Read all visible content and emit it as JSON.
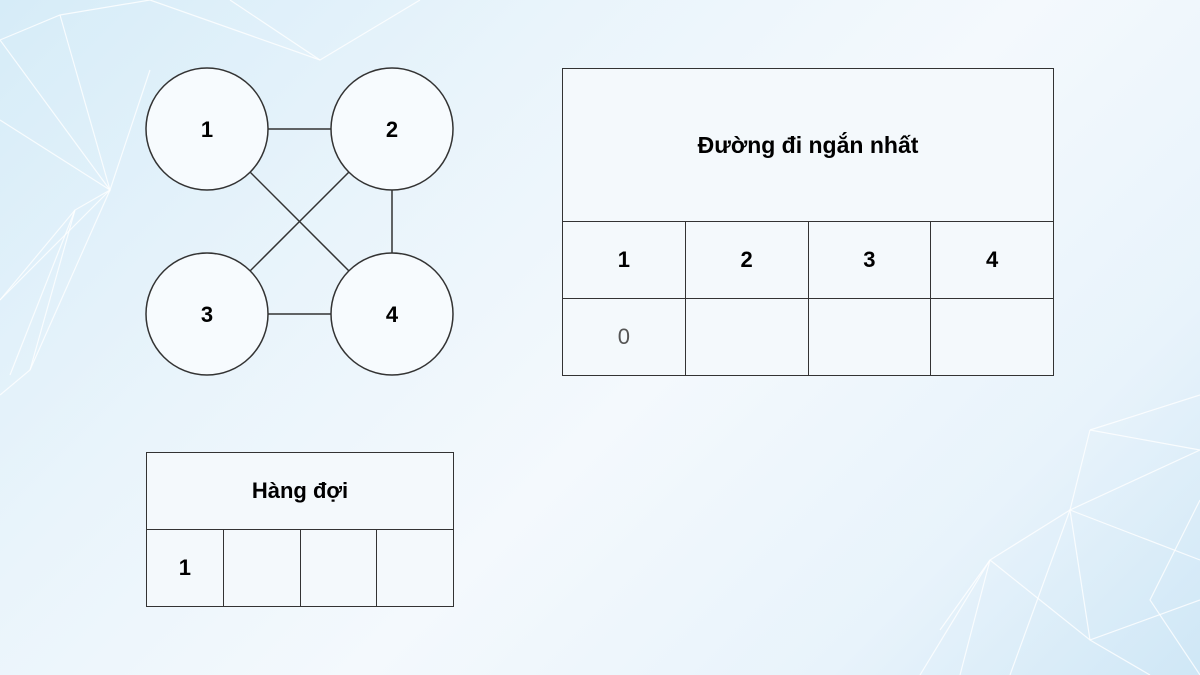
{
  "graph": {
    "nodes": [
      {
        "id": "1",
        "label": "1"
      },
      {
        "id": "2",
        "label": "2"
      },
      {
        "id": "3",
        "label": "3"
      },
      {
        "id": "4",
        "label": "4"
      }
    ],
    "edges": [
      [
        "1",
        "2"
      ],
      [
        "1",
        "4"
      ],
      [
        "2",
        "3"
      ],
      [
        "2",
        "4"
      ],
      [
        "3",
        "4"
      ]
    ]
  },
  "shortest_path": {
    "title": "Đường đi ngắn nhất",
    "headers": [
      "1",
      "2",
      "3",
      "4"
    ],
    "values": [
      "0",
      "",
      "",
      ""
    ]
  },
  "queue": {
    "title": "Hàng đợi",
    "cells": [
      "1",
      "",
      "",
      ""
    ]
  },
  "colors": {
    "node_fill": "#f7fbfe",
    "stroke": "#333333",
    "line_pattern": "#ffffff"
  }
}
